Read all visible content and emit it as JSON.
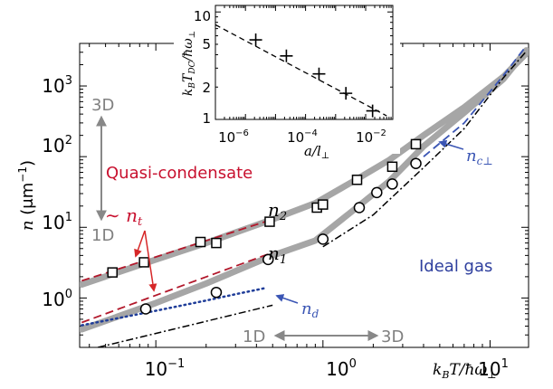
{
  "chart_data": [
    {
      "type": "line",
      "xlabel": "k_BT/ħω_⊥",
      "ylabel": "n (μm^-1)",
      "xscale": "log",
      "yscale": "log",
      "xlim": [
        0.035,
        17
      ],
      "ylim": [
        0.2,
        4000
      ],
      "xticks": [
        {
          "value": 0.1,
          "label": "10^-1"
        },
        {
          "value": 1,
          "label": "10^0"
        },
        {
          "value": 10,
          "label": "10^1"
        }
      ],
      "yticks": [
        {
          "value": 1,
          "label": "10^0"
        },
        {
          "value": 10,
          "label": "10^1"
        },
        {
          "value": 100,
          "label": "10^2"
        },
        {
          "value": 1000,
          "label": "10^3"
        }
      ],
      "grid": false,
      "series": [
        {
          "name": "n_2",
          "style": "squares",
          "color": "#000000",
          "x": [
            0.055,
            0.085,
            0.185,
            0.23,
            0.48,
            0.92,
            1.0,
            1.6,
            2.6,
            3.6
          ],
          "y": [
            2.3,
            3.2,
            6.2,
            6.0,
            12.0,
            19.0,
            21.0,
            47.0,
            72.0,
            150.0
          ]
        },
        {
          "name": "n_1",
          "style": "circles",
          "color": "#000000",
          "x": [
            0.087,
            0.23,
            0.47,
            1.0,
            1.65,
            2.1,
            2.6,
            3.6
          ],
          "y": [
            0.7,
            1.2,
            3.5,
            6.8,
            19.0,
            31.0,
            41.0,
            80.0
          ]
        },
        {
          "name": "n2-thick",
          "style": "thick-gray",
          "color": "#a6a6a6",
          "x": [
            0.036,
            0.1,
            0.2,
            0.5,
            0.9,
            1.5,
            2.5,
            4.0,
            7.0,
            12.0,
            16.5
          ],
          "y": [
            1.55,
            3.5,
            6.0,
            13.0,
            22.0,
            44.0,
            90.0,
            200.0,
            500.0,
            1350.0,
            2900.0
          ]
        },
        {
          "name": "n1-thick",
          "style": "thick-gray",
          "color": "#a6a6a6",
          "x": [
            0.036,
            0.1,
            0.2,
            0.5,
            0.9,
            1.5,
            2.5,
            4.0,
            7.0,
            12.0,
            16.5
          ],
          "y": [
            0.36,
            0.85,
            1.6,
            4.0,
            6.5,
            17.0,
            45.0,
            140.0,
            420.0,
            1250.0,
            3200.0
          ]
        },
        {
          "name": "n_t",
          "style": "dashed",
          "color": "#b2182b",
          "segments": [
            {
              "x": [
                0.036,
                0.5
              ],
              "y": [
                1.75,
                13.0
              ]
            },
            {
              "x": [
                0.036,
                0.5
              ],
              "y": [
                0.45,
                4.4
              ]
            }
          ]
        },
        {
          "name": "n_d",
          "style": "dotted",
          "color": "#1f3d99",
          "x": [
            0.036,
            0.1,
            0.2,
            0.3,
            0.45
          ],
          "y": [
            0.41,
            0.66,
            0.92,
            1.13,
            1.38
          ]
        },
        {
          "name": "n_c⊥",
          "style": "dashed",
          "color": "#3a55b4",
          "x": [
            4.0,
            7.0,
            12.0,
            16.5
          ],
          "y": [
            100.0,
            300.0,
            1400.0,
            3700.0
          ]
        },
        {
          "name": "ideal",
          "style": "dashdot",
          "color": "#000000",
          "segments": [
            {
              "x": [
                0.045,
                0.5
              ],
              "y": [
                0.2,
                0.79
              ]
            },
            {
              "x": [
                1.0,
                2.0,
                4.0,
                7.0,
                12.0,
                16.5
              ],
              "y": [
                5.3,
                15.0,
                70.0,
                250.0,
                1300.0,
                3100.0
              ]
            }
          ]
        }
      ],
      "annotations": {
        "arrow_3d": "3D",
        "arrow_1d": "1D",
        "quasi": "Quasi-condensate",
        "nt": "∼ n_t",
        "n2": "n_2",
        "n1": "n_1",
        "nd": "n_d",
        "nc": "n_c⊥",
        "ideal": "Ideal gas",
        "bottom_1d": "1D",
        "bottom_3d": "3D"
      }
    },
    {
      "type": "scatter",
      "inset": true,
      "xlabel": "a/l_⊥",
      "ylabel": "k_BT_DC/ħω_⊥",
      "xscale": "log",
      "yscale": "log",
      "xlim": [
        1e-07,
        0.08
      ],
      "ylim": [
        1.0,
        11.5
      ],
      "xticks": [
        {
          "value": 1e-06,
          "label": "10^-6"
        },
        {
          "value": 0.0001,
          "label": "10^-4"
        },
        {
          "value": 0.01,
          "label": "10^-2"
        }
      ],
      "yticks": [
        {
          "value": 1,
          "label": "1"
        },
        {
          "value": 2,
          "label": "2"
        },
        {
          "value": 5,
          "label": "5"
        },
        {
          "value": 10,
          "label": "10"
        }
      ],
      "points": {
        "x": [
          2.2e-06,
          2.3e-05,
          0.00028,
          0.0022,
          0.017
        ],
        "y": [
          5.5,
          3.9,
          2.65,
          1.75,
          1.2
        ]
      },
      "fit": {
        "x": [
          1e-07,
          0.05
        ],
        "y": [
          7.6,
          1.08
        ]
      }
    }
  ]
}
